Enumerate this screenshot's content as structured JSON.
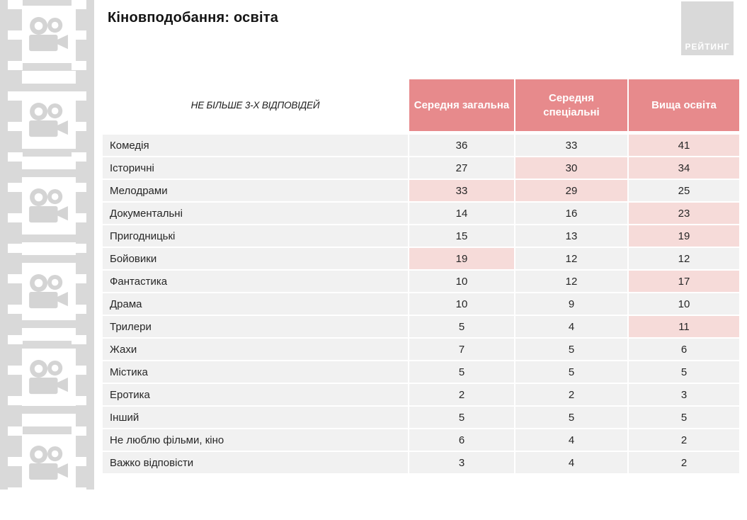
{
  "title": "Кіновподобання: освіта",
  "logo": {
    "text": "РЕЙТИНГ"
  },
  "chart_data": {
    "type": "table",
    "title": "Кіновподобання: освіта",
    "note": "НЕ БІЛЬШЕ 3-Х ВІДПОВІДЕЙ",
    "columns": [
      "Середня загальна",
      "Середня\nспеціальні",
      "Вища освіта"
    ],
    "rows": [
      {
        "label": "Комедія",
        "values": [
          36,
          33,
          41
        ],
        "highlight": [
          0,
          0,
          1
        ]
      },
      {
        "label": "Історичні",
        "values": [
          27,
          30,
          34
        ],
        "highlight": [
          0,
          1,
          1
        ]
      },
      {
        "label": "Мелодрами",
        "values": [
          33,
          29,
          25
        ],
        "highlight": [
          1,
          1,
          0
        ]
      },
      {
        "label": "Документальні",
        "values": [
          14,
          16,
          23
        ],
        "highlight": [
          0,
          0,
          1
        ]
      },
      {
        "label": "Пригодницькі",
        "values": [
          15,
          13,
          19
        ],
        "highlight": [
          0,
          0,
          1
        ]
      },
      {
        "label": "Бойовики",
        "values": [
          19,
          12,
          12
        ],
        "highlight": [
          1,
          0,
          0
        ]
      },
      {
        "label": "Фантастика",
        "values": [
          10,
          12,
          17
        ],
        "highlight": [
          0,
          0,
          1
        ]
      },
      {
        "label": "Драма",
        "values": [
          10,
          9,
          10
        ],
        "highlight": [
          0,
          0,
          0
        ]
      },
      {
        "label": "Трилери",
        "values": [
          5,
          4,
          11
        ],
        "highlight": [
          0,
          0,
          1
        ]
      },
      {
        "label": "Жахи",
        "values": [
          7,
          5,
          6
        ],
        "highlight": [
          0,
          0,
          0
        ]
      },
      {
        "label": "Містика",
        "values": [
          5,
          5,
          5
        ],
        "highlight": [
          0,
          0,
          0
        ]
      },
      {
        "label": "Еротика",
        "values": [
          2,
          2,
          3
        ],
        "highlight": [
          0,
          0,
          0
        ]
      },
      {
        "label": "Інший",
        "values": [
          5,
          5,
          5
        ],
        "highlight": [
          0,
          0,
          0
        ]
      },
      {
        "label": "Не люблю фільми, кіно",
        "values": [
          6,
          4,
          2
        ],
        "highlight": [
          0,
          0,
          0
        ]
      },
      {
        "label": "Важко відповісти",
        "values": [
          3,
          4,
          2
        ],
        "highlight": [
          0,
          0,
          0
        ]
      }
    ]
  },
  "icons": {
    "filmstrip_camera": "movie-camera-icon"
  },
  "colors": {
    "header_pink": "#e78a8c",
    "highlight_pink": "#f6dbd9",
    "row_gray": "#f1f1f1",
    "strip_gray": "#d9d9d9",
    "logo_gray": "#d9d9d9"
  }
}
